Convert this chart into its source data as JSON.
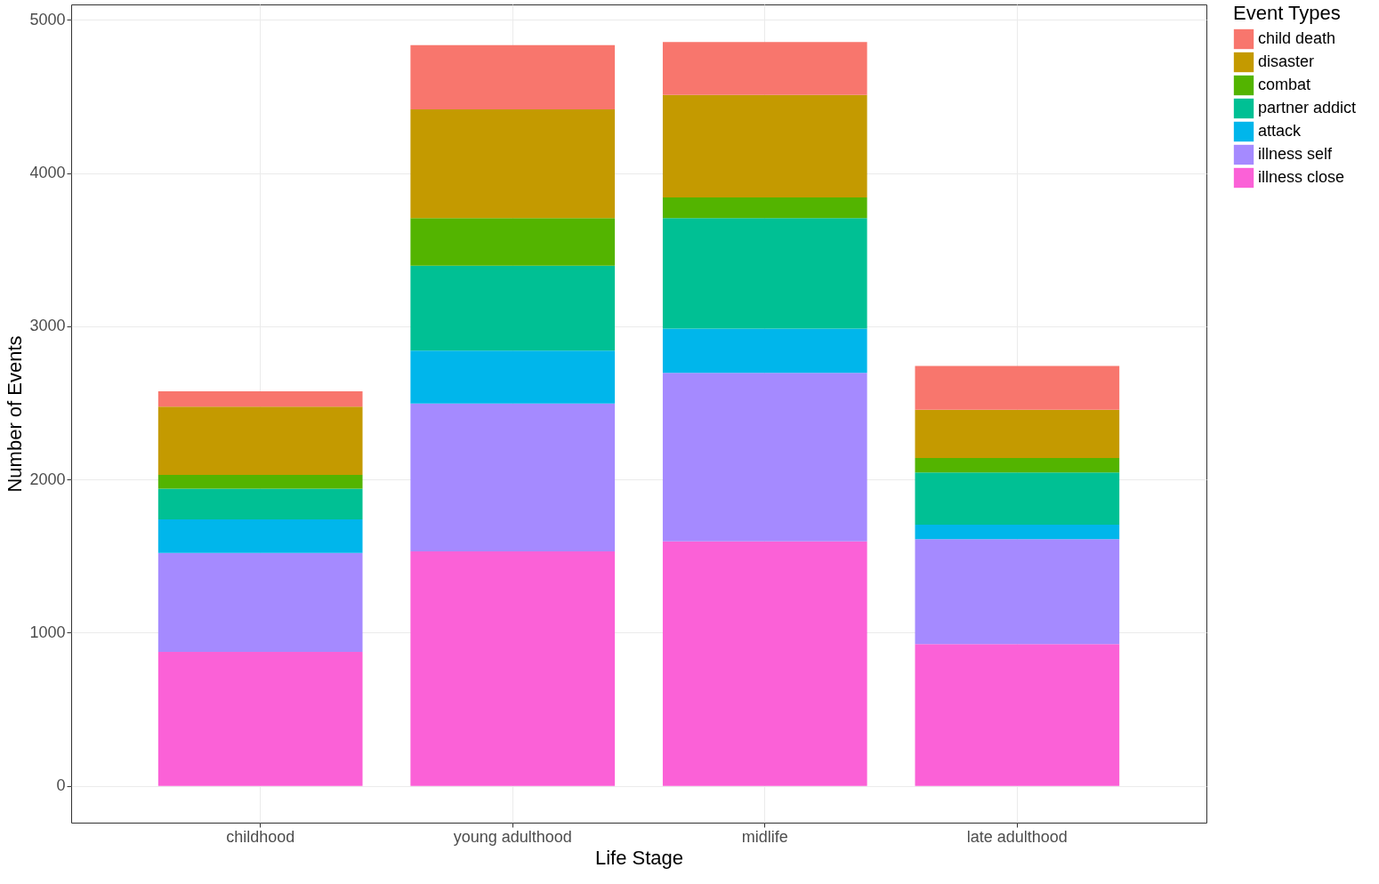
{
  "chart_data": {
    "type": "bar",
    "stacked": true,
    "xlabel": "Life Stage",
    "ylabel": "Number of Events",
    "legend_title": "Event Types",
    "legend": "right",
    "grid": true,
    "categories": [
      "childhood",
      "young adulthood",
      "midlife",
      "late adulthood"
    ],
    "ylim": [
      -240,
      5100
    ],
    "yticks": [
      0,
      1000,
      2000,
      3000,
      4000,
      5000
    ],
    "series": [
      {
        "name": "illness close",
        "color": "#fb61d7",
        "values": [
          875,
          1530,
          1595,
          925
        ]
      },
      {
        "name": "illness self",
        "color": "#a58aff",
        "values": [
          645,
          965,
          1100,
          685
        ]
      },
      {
        "name": "attack",
        "color": "#00b6eb",
        "values": [
          220,
          345,
          290,
          95
        ]
      },
      {
        "name": "partner addict",
        "color": "#00c094",
        "values": [
          200,
          555,
          720,
          340
        ]
      },
      {
        "name": "combat",
        "color": "#53b400",
        "values": [
          90,
          310,
          135,
          95
        ]
      },
      {
        "name": "disaster",
        "color": "#c49a00",
        "values": [
          445,
          710,
          670,
          315
        ]
      },
      {
        "name": "child death",
        "color": "#f8766d",
        "values": [
          100,
          420,
          345,
          285
        ]
      }
    ]
  }
}
